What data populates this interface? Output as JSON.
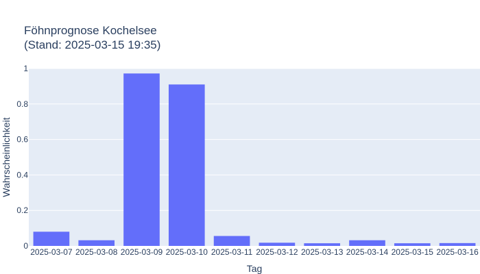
{
  "chart_data": {
    "type": "bar",
    "title_lines": [
      "Föhnprognose Kochelsee",
      "(Stand: 2025-03-15 19:35)"
    ],
    "xlabel": "Tag",
    "ylabel": "Wahrscheinlichkeit",
    "categories": [
      "2025-03-07",
      "2025-03-08",
      "2025-03-09",
      "2025-03-10",
      "2025-03-11",
      "2025-03-12",
      "2025-03-13",
      "2025-03-14",
      "2025-03-15",
      "2025-03-16"
    ],
    "values": [
      0.08,
      0.032,
      0.972,
      0.91,
      0.056,
      0.018,
      0.015,
      0.032,
      0.015,
      0.016
    ],
    "ylim": [
      0,
      1
    ],
    "y_ticks": [
      0,
      0.2,
      0.4,
      0.6,
      0.8,
      1
    ],
    "y_tick_labels": [
      "0",
      "0.2",
      "0.4",
      "0.6",
      "0.8",
      "1"
    ],
    "grid": true,
    "colors": {
      "bar": "#636efa",
      "plot_bg": "#e5ecf6",
      "grid": "#ffffff",
      "text": "#2a3f5f"
    }
  }
}
